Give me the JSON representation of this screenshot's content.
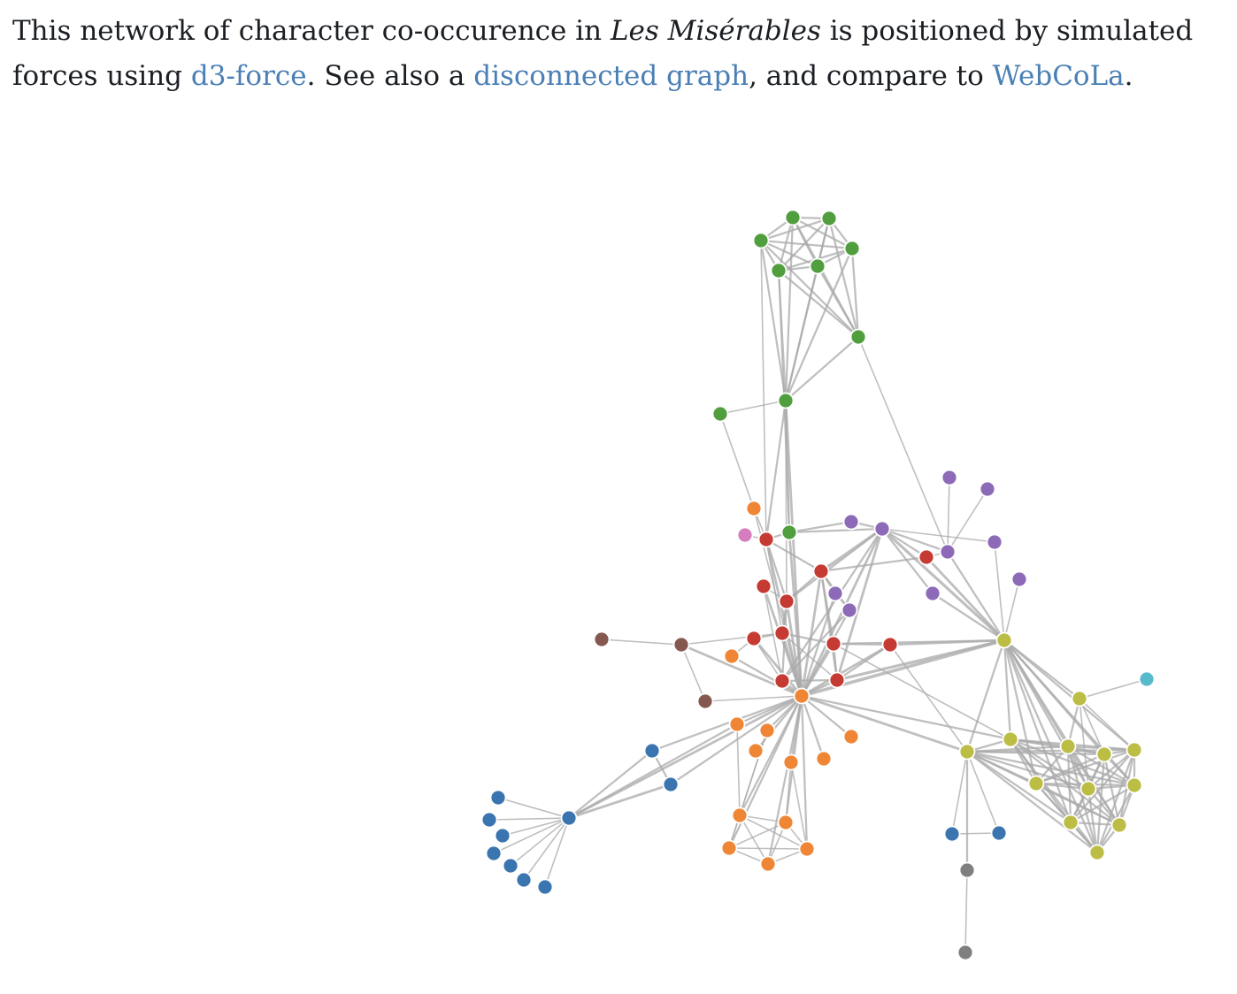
{
  "intro": {
    "text_1": "This network of character co-occurence in ",
    "book_title": "Les Misérables",
    "text_2": " is positioned by simulated forces using ",
    "link_d3_force": "d3-force",
    "text_3": ". See also a ",
    "link_disconnected_graph": "disconnected graph",
    "text_4": ", and compare to ",
    "link_webcola": "WebCoLa",
    "text_5": "."
  },
  "graph": {
    "link_color": "#aaaaaa",
    "group_colors": {
      "1": "#3b75af",
      "2": "#ef8636",
      "3": "#519e3e",
      "4": "#c53a32",
      "5": "#8d6ab8",
      "6": "#84584e",
      "7": "#d57dbf",
      "8": "#7f7f7f",
      "9": "#bcbd45",
      "10": "#58bbcc"
    }
  }
}
